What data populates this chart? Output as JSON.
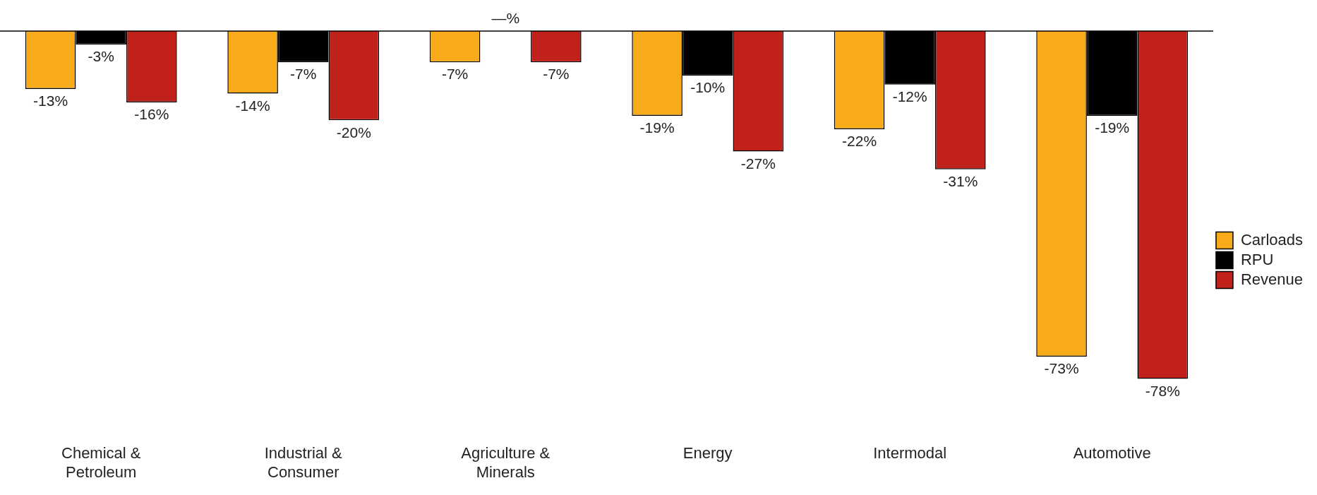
{
  "chart_data": {
    "type": "bar",
    "categories": [
      "Chemical &\nPetroleum",
      "Industrial &\nConsumer",
      "Agriculture &\nMinerals",
      "Energy",
      "Intermodal",
      "Automotive"
    ],
    "series": [
      {
        "name": "Carloads",
        "color": "#f7ab1b",
        "values": [
          -13,
          -14,
          -7,
          -19,
          -22,
          -73
        ],
        "value_labels": [
          "-13%",
          "-14%",
          "-7%",
          "-19%",
          "-22%",
          "-73%"
        ]
      },
      {
        "name": "RPU",
        "color": "#000000",
        "values": [
          -3,
          -7,
          null,
          -10,
          -12,
          -19
        ],
        "value_labels": [
          "-3%",
          "-7%",
          "—%",
          "-10%",
          "-12%",
          "-19%"
        ]
      },
      {
        "name": "Revenue",
        "color": "#c0211a",
        "values": [
          -16,
          -20,
          -7,
          -27,
          -31,
          -78
        ],
        "value_labels": [
          "-16%",
          "-20%",
          "-7%",
          "-27%",
          "-31%",
          "-78%"
        ]
      }
    ],
    "legend": "right",
    "grid": false,
    "tick_labels": "x"
  }
}
